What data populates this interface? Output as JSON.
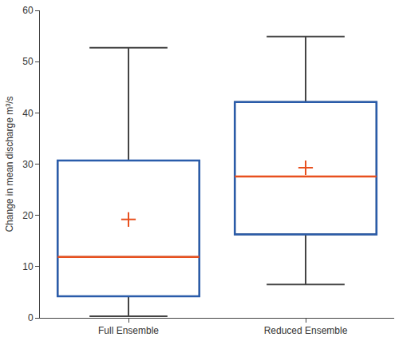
{
  "chart_data": {
    "type": "box",
    "y_label": "Change in mean discharge m³/s",
    "categories": [
      "Full Ensemble",
      "Reduced Ensemble"
    ],
    "lower_whisker": [
      0.3,
      6.5
    ],
    "q1": [
      4.2,
      16.3
    ],
    "median": [
      11.9,
      27.6
    ],
    "q3": [
      30.7,
      42.1
    ],
    "upper_whisker": [
      52.7,
      54.9
    ],
    "mean": [
      19.2,
      29.3
    ],
    "color": "#2a5caa",
    "ylim": [
      0,
      60
    ],
    "yticks": [
      0,
      10,
      20,
      30,
      40,
      50,
      60
    ],
    "grid": false
  }
}
